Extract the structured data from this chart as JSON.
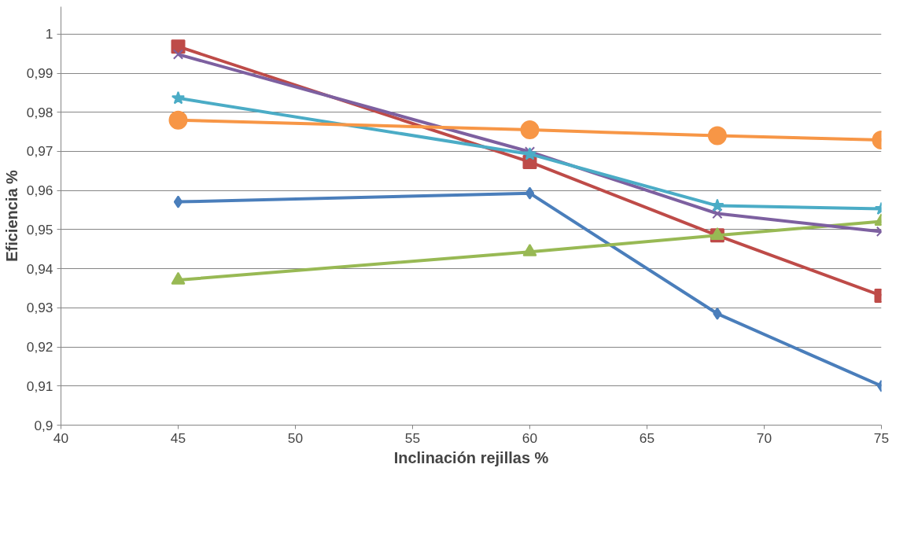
{
  "chart_data": {
    "type": "line",
    "xlabel": "Inclinación rejillas %",
    "ylabel": "Eficiencia %",
    "x": [
      45,
      60,
      68,
      75
    ],
    "series": [
      {
        "color": "#4a7ebb",
        "marker": "diamond",
        "values": [
          0.9571,
          0.9593,
          0.9285,
          0.91
        ]
      },
      {
        "color": "#be4b48",
        "marker": "square",
        "values": [
          0.9968,
          0.9673,
          0.9485,
          0.9331
        ]
      },
      {
        "color": "#98b954",
        "marker": "triangle",
        "values": [
          0.9371,
          0.9443,
          0.9485,
          0.9521
        ]
      },
      {
        "color": "#7d60a0",
        "marker": "cross",
        "values": [
          0.9948,
          0.9699,
          0.9541,
          0.9495
        ]
      },
      {
        "color": "#4bacc6",
        "marker": "star",
        "values": [
          0.9836,
          0.9693,
          0.9561,
          0.9553
        ]
      },
      {
        "color": "#f79646",
        "marker": "circle",
        "values": [
          0.978,
          0.9755,
          0.974,
          0.9729
        ]
      }
    ],
    "xlim": [
      40,
      75
    ],
    "xticks": [
      40,
      45,
      50,
      55,
      60,
      65,
      70,
      75
    ],
    "ylim": [
      0.9,
      1.007
    ],
    "yticks": [
      {
        "value": 0.9,
        "label": "0,9"
      },
      {
        "value": 0.91,
        "label": "0,91"
      },
      {
        "value": 0.92,
        "label": "0,92"
      },
      {
        "value": 0.93,
        "label": "0,93"
      },
      {
        "value": 0.94,
        "label": "0,94"
      },
      {
        "value": 0.95,
        "label": "0,95"
      },
      {
        "value": 0.96,
        "label": "0,96"
      },
      {
        "value": 0.97,
        "label": "0,97"
      },
      {
        "value": 0.98,
        "label": "0,98"
      },
      {
        "value": 0.99,
        "label": "0,99"
      },
      {
        "value": 1,
        "label": "1"
      }
    ],
    "grid": "y"
  }
}
